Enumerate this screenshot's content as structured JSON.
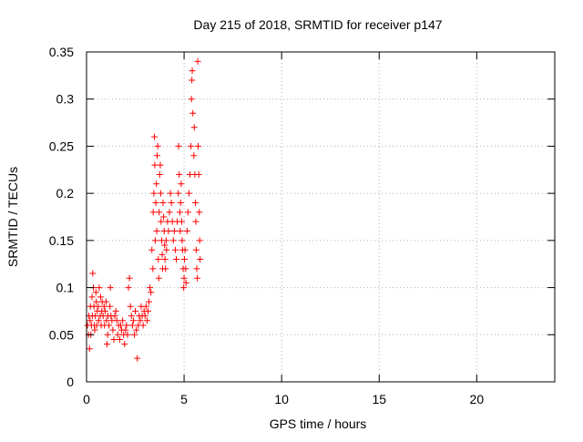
{
  "chart_data": {
    "type": "scatter",
    "title": "Day 215 of 2018, SRMTID for receiver p147",
    "xlabel": "GPS time / hours",
    "ylabel": "SRMTID / TECUs",
    "xlim": [
      0,
      24
    ],
    "ylim": [
      0,
      0.35
    ],
    "x_ticks": [
      0,
      5,
      10,
      15,
      20
    ],
    "x_tick_labels": [
      "0",
      "5",
      "10",
      "15",
      "20"
    ],
    "y_ticks": [
      0,
      0.05,
      0.1,
      0.15,
      0.2,
      0.25,
      0.3,
      0.35
    ],
    "y_tick_labels": [
      "0",
      "0.05",
      "0.1",
      "0.15",
      "0.2",
      "0.25",
      "0.3",
      "0.35"
    ],
    "grid": true,
    "marker": "+",
    "color": "#ff0000",
    "series": [
      {
        "points": [
          [
            0.05,
            0.06
          ],
          [
            0.1,
            0.05
          ],
          [
            0.12,
            0.07
          ],
          [
            0.15,
            0.035
          ],
          [
            0.18,
            0.065
          ],
          [
            0.2,
            0.08
          ],
          [
            0.22,
            0.05
          ],
          [
            0.25,
            0.06
          ],
          [
            0.28,
            0.09
          ],
          [
            0.3,
            0.07
          ],
          [
            0.32,
            0.115
          ],
          [
            0.35,
            0.1
          ],
          [
            0.38,
            0.08
          ],
          [
            0.4,
            0.06
          ],
          [
            0.42,
            0.055
          ],
          [
            0.45,
            0.07
          ],
          [
            0.48,
            0.095
          ],
          [
            0.5,
            0.085
          ],
          [
            0.52,
            0.06
          ],
          [
            0.55,
            0.075
          ],
          [
            0.6,
            0.08
          ],
          [
            0.62,
            0.065
          ],
          [
            0.65,
            0.1
          ],
          [
            0.7,
            0.07
          ],
          [
            0.72,
            0.09
          ],
          [
            0.75,
            0.06
          ],
          [
            0.78,
            0.075
          ],
          [
            0.8,
            0.085
          ],
          [
            0.85,
            0.07
          ],
          [
            0.9,
            0.08
          ],
          [
            0.92,
            0.06
          ],
          [
            0.95,
            0.075
          ],
          [
            1.0,
            0.085
          ],
          [
            1.02,
            0.065
          ],
          [
            1.05,
            0.04
          ],
          [
            1.08,
            0.05
          ],
          [
            1.1,
            0.07
          ],
          [
            1.15,
            0.06
          ],
          [
            1.2,
            0.08
          ],
          [
            1.22,
            0.1
          ],
          [
            1.25,
            0.07
          ],
          [
            1.3,
            0.065
          ],
          [
            1.35,
            0.055
          ],
          [
            1.4,
            0.045
          ],
          [
            1.45,
            0.07
          ],
          [
            1.5,
            0.075
          ],
          [
            1.55,
            0.065
          ],
          [
            1.6,
            0.05
          ],
          [
            1.65,
            0.06
          ],
          [
            1.7,
            0.045
          ],
          [
            1.75,
            0.06
          ],
          [
            1.8,
            0.055
          ],
          [
            1.85,
            0.065
          ],
          [
            1.9,
            0.05
          ],
          [
            1.95,
            0.04
          ],
          [
            2.0,
            0.055
          ],
          [
            2.05,
            0.06
          ],
          [
            2.1,
            0.05
          ],
          [
            2.15,
            0.1
          ],
          [
            2.2,
            0.11
          ],
          [
            2.25,
            0.08
          ],
          [
            2.3,
            0.07
          ],
          [
            2.35,
            0.06
          ],
          [
            2.4,
            0.065
          ],
          [
            2.45,
            0.05
          ],
          [
            2.5,
            0.075
          ],
          [
            2.55,
            0.055
          ],
          [
            2.6,
            0.025
          ],
          [
            2.65,
            0.06
          ],
          [
            2.7,
            0.07
          ],
          [
            2.75,
            0.065
          ],
          [
            2.8,
            0.08
          ],
          [
            2.85,
            0.07
          ],
          [
            2.9,
            0.06
          ],
          [
            2.95,
            0.075
          ],
          [
            3.0,
            0.07
          ],
          [
            3.05,
            0.08
          ],
          [
            3.1,
            0.065
          ],
          [
            3.15,
            0.075
          ],
          [
            3.2,
            0.085
          ],
          [
            3.25,
            0.1
          ],
          [
            3.3,
            0.095
          ],
          [
            3.35,
            0.14
          ],
          [
            3.4,
            0.12
          ],
          [
            3.42,
            0.18
          ],
          [
            3.45,
            0.2
          ],
          [
            3.48,
            0.26
          ],
          [
            3.5,
            0.23
          ],
          [
            3.52,
            0.15
          ],
          [
            3.55,
            0.19
          ],
          [
            3.58,
            0.21
          ],
          [
            3.6,
            0.16
          ],
          [
            3.62,
            0.24
          ],
          [
            3.65,
            0.25
          ],
          [
            3.68,
            0.13
          ],
          [
            3.7,
            0.11
          ],
          [
            3.72,
            0.18
          ],
          [
            3.75,
            0.22
          ],
          [
            3.78,
            0.23
          ],
          [
            3.8,
            0.2
          ],
          [
            3.82,
            0.17
          ],
          [
            3.85,
            0.15
          ],
          [
            3.88,
            0.135
          ],
          [
            3.9,
            0.12
          ],
          [
            3.92,
            0.19
          ],
          [
            3.95,
            0.175
          ],
          [
            3.98,
            0.16
          ],
          [
            4.0,
            0.145
          ],
          [
            4.02,
            0.13
          ],
          [
            4.05,
            0.12
          ],
          [
            4.08,
            0.15
          ],
          [
            4.1,
            0.14
          ],
          [
            4.15,
            0.17
          ],
          [
            4.2,
            0.16
          ],
          [
            4.25,
            0.18
          ],
          [
            4.3,
            0.2
          ],
          [
            4.35,
            0.19
          ],
          [
            4.4,
            0.17
          ],
          [
            4.45,
            0.15
          ],
          [
            4.5,
            0.16
          ],
          [
            4.55,
            0.14
          ],
          [
            4.6,
            0.13
          ],
          [
            4.65,
            0.17
          ],
          [
            4.7,
            0.2
          ],
          [
            4.72,
            0.25
          ],
          [
            4.75,
            0.22
          ],
          [
            4.78,
            0.18
          ],
          [
            4.8,
            0.16
          ],
          [
            4.82,
            0.19
          ],
          [
            4.85,
            0.21
          ],
          [
            4.88,
            0.17
          ],
          [
            4.9,
            0.15
          ],
          [
            4.92,
            0.14
          ],
          [
            4.95,
            0.12
          ],
          [
            4.98,
            0.1
          ],
          [
            5.0,
            0.11
          ],
          [
            5.02,
            0.13
          ],
          [
            5.05,
            0.14
          ],
          [
            5.08,
            0.12
          ],
          [
            5.1,
            0.105
          ],
          [
            5.15,
            0.16
          ],
          [
            5.2,
            0.18
          ],
          [
            5.25,
            0.2
          ],
          [
            5.3,
            0.22
          ],
          [
            5.35,
            0.25
          ],
          [
            5.38,
            0.3
          ],
          [
            5.4,
            0.32
          ],
          [
            5.42,
            0.33
          ],
          [
            5.45,
            0.285
          ],
          [
            5.5,
            0.24
          ],
          [
            5.52,
            0.27
          ],
          [
            5.55,
            0.22
          ],
          [
            5.58,
            0.19
          ],
          [
            5.6,
            0.17
          ],
          [
            5.62,
            0.14
          ],
          [
            5.65,
            0.12
          ],
          [
            5.68,
            0.11
          ],
          [
            5.7,
            0.34
          ],
          [
            5.72,
            0.25
          ],
          [
            5.75,
            0.22
          ],
          [
            5.78,
            0.18
          ],
          [
            5.8,
            0.15
          ],
          [
            5.82,
            0.13
          ]
        ]
      }
    ]
  }
}
